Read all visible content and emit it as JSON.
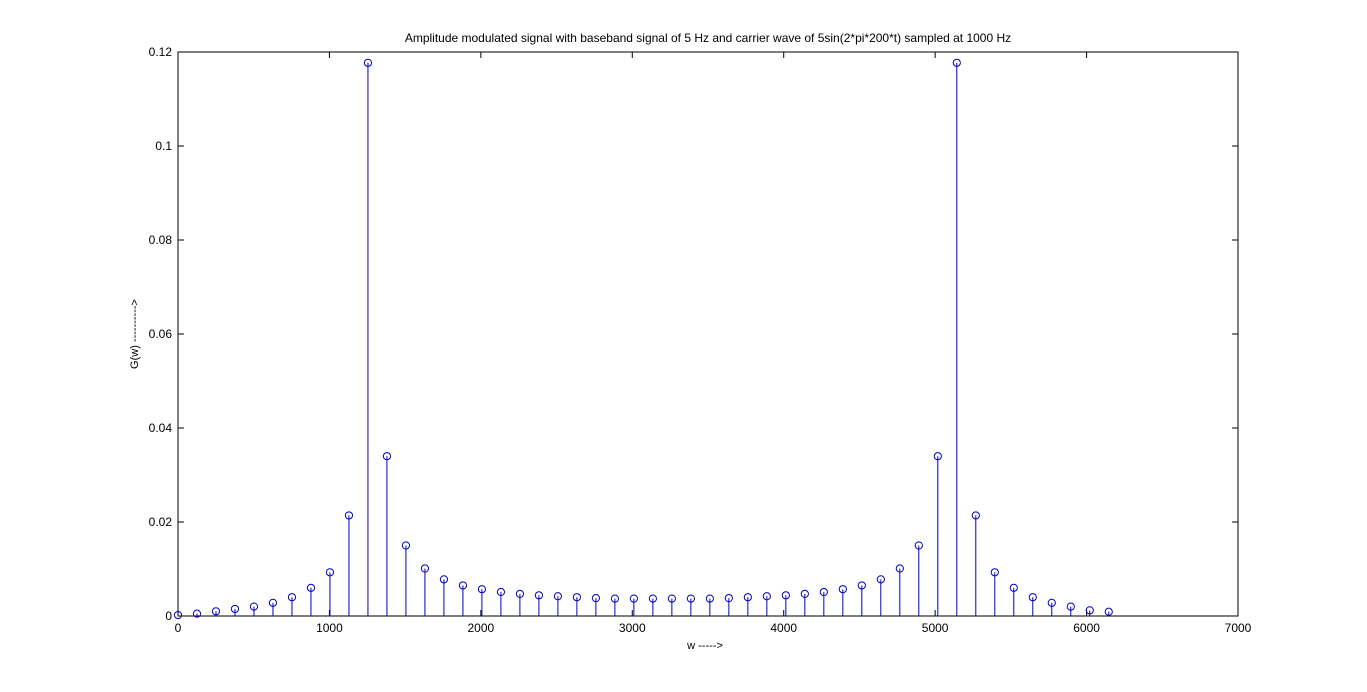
{
  "chart_data": {
    "type": "stem",
    "title": "Amplitude modulated signal with baseband signal of 5 Hz and carrier wave of 5sin(2*pi*200*t) sampled at 1000 Hz",
    "xlabel": "w ----->",
    "ylabel": "G(w) ---------->",
    "xlim": [
      0,
      7000
    ],
    "ylim": [
      0,
      0.12
    ],
    "xticks": [
      "0",
      "1000",
      "2000",
      "3000",
      "4000",
      "5000",
      "6000",
      "7000"
    ],
    "yticks": [
      "0",
      "0.02",
      "0.04",
      "0.06",
      "0.08",
      "0.1",
      "0.12"
    ],
    "grid": false,
    "color": "#0000cc",
    "x": [
      0,
      125.4,
      250.9,
      376.3,
      501.8,
      627.2,
      752.6,
      878.1,
      1003.5,
      1128.9,
      1254.4,
      1379.8,
      1505.3,
      1630.7,
      1756.1,
      1881.6,
      2007,
      2132.5,
      2257.9,
      2383.3,
      2508.8,
      2634.2,
      2759.7,
      2885.1,
      3010.5,
      3136,
      3261.4,
      3386.9,
      3512.3,
      3637.7,
      3763.2,
      3888.6,
      4014.1,
      4139.5,
      4264.9,
      4390.4,
      4515.8,
      4641.3,
      4766.7,
      4892.1,
      5017.6,
      5143,
      5268.5,
      5393.9,
      5519.3,
      5644.8,
      5770.2,
      5895.7,
      6021.1,
      6146.5
    ],
    "y": [
      0.0002,
      0.0005,
      0.001,
      0.0015,
      0.002,
      0.0028,
      0.004,
      0.006,
      0.0093,
      0.0214,
      0.1177,
      0.034,
      0.015,
      0.0101,
      0.0078,
      0.0065,
      0.0057,
      0.0051,
      0.0047,
      0.0044,
      0.0042,
      0.004,
      0.0038,
      0.0037,
      0.0037,
      0.0037,
      0.0037,
      0.0037,
      0.0037,
      0.0038,
      0.004,
      0.0042,
      0.0044,
      0.0047,
      0.0051,
      0.0057,
      0.0065,
      0.0078,
      0.0101,
      0.015,
      0.034,
      0.1177,
      0.0214,
      0.0093,
      0.006,
      0.004,
      0.0028,
      0.002,
      0.0012,
      0.0009
    ]
  }
}
